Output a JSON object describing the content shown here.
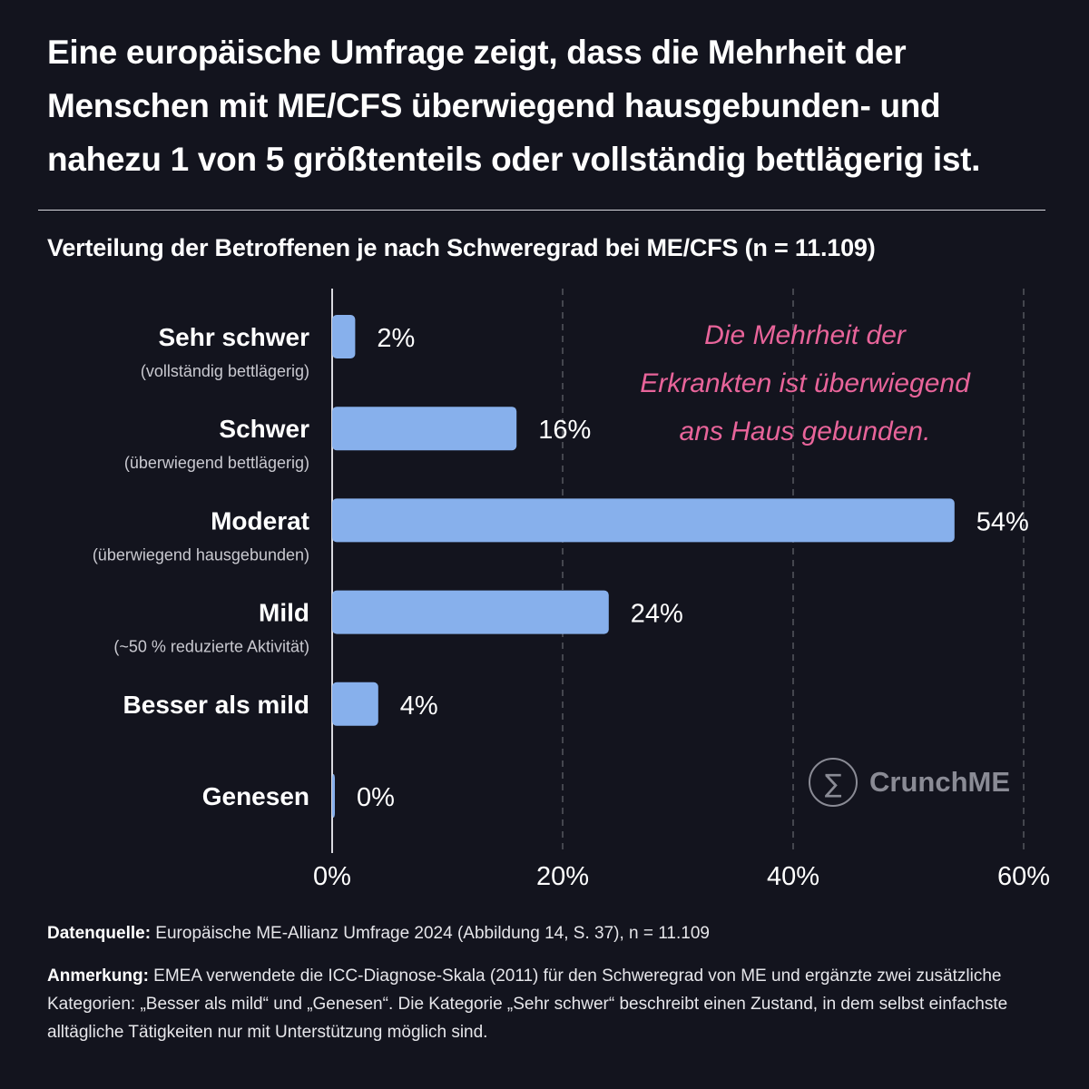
{
  "headline": "Eine europäische Umfrage zeigt, dass die Mehrheit der Menschen mit ME/CFS überwiegend hausgebunden- und nahezu 1 von 5 größtenteils oder vollständig bettlägerig ist.",
  "colors": {
    "background": "#13141e",
    "bar": "#87b0ec",
    "annotation": "#e8649a",
    "text": "#ffffff",
    "muted": "#c9c9d0",
    "grid": "#55565f",
    "logo": "#8a8b95"
  },
  "chart_data": {
    "type": "bar",
    "orientation": "horizontal",
    "title": "Verteilung der Betroffenen je nach Schweregrad bei ME/CFS (n = 11.109)",
    "categories": [
      "Sehr schwer",
      "Schwer",
      "Moderat",
      "Mild",
      "Besser als mild",
      "Genesen"
    ],
    "descriptions": [
      "(vollständig bettlägerig)",
      "(überwiegend bettlägerig)",
      "(überwiegend hausgebunden)",
      "(~50 % reduzierte Aktivität)",
      "",
      ""
    ],
    "values": [
      2,
      16,
      54,
      24,
      4,
      0
    ],
    "value_labels": [
      "2%",
      "16%",
      "54%",
      "24%",
      "4%",
      "0%"
    ],
    "xlim": [
      0,
      60
    ],
    "ticks": [
      0,
      20,
      40,
      60
    ],
    "tick_labels": [
      "0%",
      "20%",
      "40%",
      "60%"
    ],
    "grid": "vertical dashed",
    "annotation": [
      "Die Mehrheit der",
      "Erkrankten ist überwiegend",
      "ans Haus gebunden."
    ]
  },
  "logo": {
    "symbol": "∑",
    "text": "CrunchME"
  },
  "footer": {
    "source_label": "Datenquelle:",
    "source_text": " Europäische ME-Allianz Umfrage 2024 (Abbildung 14, S. 37), n = 11.109",
    "note_label": "Anmerkung:",
    "note_text": " EMEA verwendete die ICC-Diagnose-Skala (2011) für den Schweregrad von ME und ergänzte zwei zusätzliche Kategorien: „Besser als mild“ und „Genesen“. Die Kategorie „Sehr schwer“ beschreibt einen Zustand, in dem selbst einfachste alltägliche Tätigkeiten nur mit Unterstützung möglich sind."
  }
}
